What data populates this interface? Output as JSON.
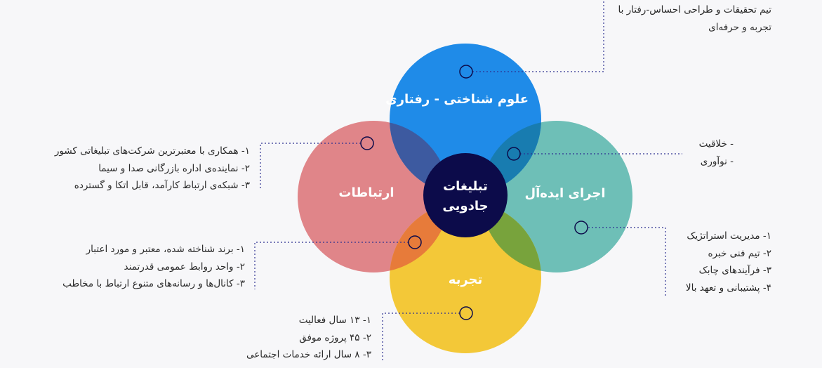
{
  "center": {
    "line1": "تبلیغات",
    "line2": "جادویی"
  },
  "circles": {
    "top": {
      "label": "علوم شناختی - رفتاری",
      "color": "#1f8be8"
    },
    "left": {
      "label": "ارتباطات",
      "color": "#e08589"
    },
    "right": {
      "label": "اجرای ایده‌آل",
      "color": "#6ebfb7"
    },
    "bottom": {
      "label": "تجربه",
      "color": "#f3c838"
    }
  },
  "colors": {
    "center": "#0c0b4a",
    "connector": "#2e3192"
  },
  "notes": {
    "top": [
      "تیم تحقیقات و طراحی احساس-رفتار با",
      "تجربه و حرفه‌ای"
    ],
    "left": [
      "۱- همکاری با معتبرترین شرکت‌های تبلیغاتی کشور",
      "۲- نماینده‌ی اداره بازرگانی صدا و سیما",
      "۳- شبکه‌ی ارتباط کارآمد، قابل اتکا و گسترده"
    ],
    "right": [
      "- خلاقیت",
      "- نوآوری"
    ],
    "right2": [
      "۱- مدیریت استراتژیک",
      "۲- تیم فنی خبره",
      "۳- فرآیندهای چابک",
      "۴- پشتیبانی و تعهد بالا"
    ],
    "left2": [
      "۱- برند شناخته شده، معتبر و مورد اعتبار",
      "۲- واحد روابط عمومی قدرتمند",
      "۳- کانال‌ها و رسانه‌های متنوع ارتباط با مخاطب"
    ],
    "bottom": [
      "۱- ۱۳ سال فعالیت",
      "۲- ۴۵ پروژه موفق",
      "۳- ۸ سال ارائه خدمات اجتماعی"
    ]
  }
}
